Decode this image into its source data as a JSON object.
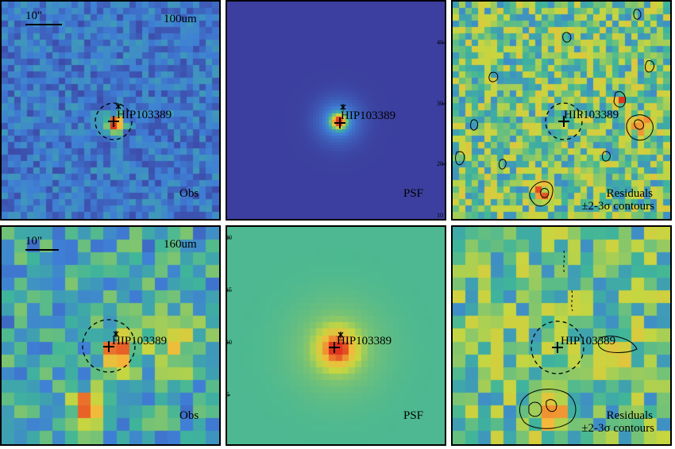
{
  "figure": {
    "source_name": "HIP103389",
    "colors": {
      "low": "#3b2a8c",
      "mid_low": "#3f7fd6",
      "mid": "#3fb59a",
      "mid_high": "#c6d640",
      "high": "#f5b83a",
      "peak": "#e0321e",
      "frame": "#000000"
    },
    "rows": [
      {
        "band": "100um",
        "scale_bar_label": "10\"",
        "panels": [
          {
            "kind": "observed",
            "caption": "Obs",
            "target_label": "HIP103389",
            "show_aperture": true,
            "show_scale": true,
            "show_band": true
          },
          {
            "kind": "psf",
            "caption": "PSF",
            "target_label": "HIP103389",
            "show_aperture": false,
            "show_scale": false,
            "show_band": false
          },
          {
            "kind": "residual",
            "caption_line1": "Residuals",
            "caption_line2": "±2-3σ contours",
            "target_label": "HIP103389",
            "show_aperture": true,
            "show_scale": false,
            "show_band": false
          }
        ]
      },
      {
        "band": "160um",
        "scale_bar_label": "10\"",
        "panels": [
          {
            "kind": "observed",
            "caption": "Obs",
            "target_label": "HIP103389",
            "show_aperture": true,
            "show_scale": true,
            "show_band": true
          },
          {
            "kind": "psf",
            "caption": "PSF",
            "target_label": "HIP103389",
            "show_aperture": false,
            "show_scale": false,
            "show_band": false
          },
          {
            "kind": "residual",
            "caption_line1": "Residuals",
            "caption_line2": "±2-3σ contours",
            "target_label": "HIP103389",
            "show_aperture": true,
            "show_scale": false,
            "show_band": false
          }
        ]
      }
    ],
    "psf_tick_labels": {
      "row1": [
        "40",
        "30",
        "20",
        "10"
      ],
      "row2": [
        "20",
        "15",
        "10",
        "5"
      ]
    }
  }
}
